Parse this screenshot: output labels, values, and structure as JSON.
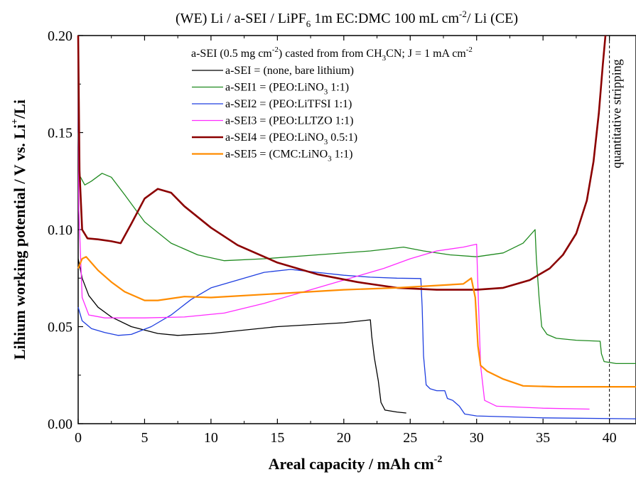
{
  "chart_data": {
    "type": "line",
    "title": {
      "main": "(WE) Li / a-SEI / LiPF",
      "sub1": "6",
      "rest": " 1m EC:DMC 100 mL cm",
      "sup1": "-2",
      "end": "/ Li (CE)"
    },
    "xlabel": {
      "main": "Areal capacity / mAh cm",
      "sup": "-2"
    },
    "ylabel": {
      "pre": "Lihium working potential / V vs. Li",
      "sup": "+",
      "post": "/Li"
    },
    "xlim": [
      0,
      42
    ],
    "ylim": [
      0,
      0.2
    ],
    "x_ticks": [
      0,
      5,
      10,
      15,
      20,
      25,
      30,
      35,
      40
    ],
    "x_tick_labels": [
      "0",
      "5",
      "10",
      "15",
      "20",
      "25",
      "30",
      "35",
      "40"
    ],
    "y_ticks": [
      0.0,
      0.05,
      0.1,
      0.15,
      0.2
    ],
    "y_tick_labels": [
      "0.00",
      "0.05",
      "0.10",
      "0.15",
      "0.20"
    ],
    "legend_position": "top-right",
    "legend_header": {
      "p1": "a-SEI (0.5 mg cm",
      "s1": "-2",
      "p2": ") casted from from CH",
      "s2": "3",
      "p3": "CN; J = 1 mA cm",
      "s3": "-2"
    },
    "annotation": {
      "text": "quantitative stripping",
      "x": 40
    },
    "series": [
      {
        "name": "a-SEI = (none, bare lithium)",
        "label": {
          "pre": "a-SEI = (none, bare lithium)",
          "sub": "",
          "post": ""
        },
        "color": "#000000",
        "width": 1.3,
        "points": [
          [
            0,
            0.085
          ],
          [
            0.3,
            0.075
          ],
          [
            0.8,
            0.066
          ],
          [
            1.5,
            0.06
          ],
          [
            2.5,
            0.055
          ],
          [
            4,
            0.05
          ],
          [
            6,
            0.0465
          ],
          [
            7.5,
            0.0455
          ],
          [
            10,
            0.0465
          ],
          [
            15,
            0.05
          ],
          [
            20,
            0.052
          ],
          [
            22,
            0.0535
          ],
          [
            22.1,
            0.045
          ],
          [
            22.3,
            0.034
          ],
          [
            22.6,
            0.022
          ],
          [
            22.8,
            0.011
          ],
          [
            23.1,
            0.007
          ],
          [
            24,
            0.006
          ],
          [
            24.7,
            0.0055
          ]
        ]
      },
      {
        "name": "a-SEI1 = (PEO:LiNO3 1:1)",
        "label": {
          "pre": "a-SEI1 = (PEO:LiNO",
          "sub": "3",
          "post": " 1:1)"
        },
        "color": "#1f8a1f",
        "width": 1.3,
        "points": [
          [
            0,
            0.15
          ],
          [
            0.1,
            0.128
          ],
          [
            0.5,
            0.123
          ],
          [
            1,
            0.125
          ],
          [
            1.8,
            0.129
          ],
          [
            2.5,
            0.127
          ],
          [
            3.5,
            0.118
          ],
          [
            5,
            0.104
          ],
          [
            7,
            0.093
          ],
          [
            9,
            0.087
          ],
          [
            11,
            0.084
          ],
          [
            14,
            0.085
          ],
          [
            18,
            0.087
          ],
          [
            22,
            0.089
          ],
          [
            24.5,
            0.091
          ],
          [
            26,
            0.089
          ],
          [
            28,
            0.087
          ],
          [
            30,
            0.086
          ],
          [
            32,
            0.088
          ],
          [
            33.5,
            0.093
          ],
          [
            34.4,
            0.1
          ],
          [
            34.5,
            0.085
          ],
          [
            34.7,
            0.065
          ],
          [
            34.9,
            0.05
          ],
          [
            35.3,
            0.046
          ],
          [
            36,
            0.044
          ],
          [
            37.5,
            0.043
          ],
          [
            39.3,
            0.0425
          ],
          [
            39.4,
            0.036
          ],
          [
            39.6,
            0.032
          ],
          [
            40.5,
            0.031
          ],
          [
            42,
            0.031
          ]
        ]
      },
      {
        "name": "a-SEI2 = (PEO:LiTFSI 1:1)",
        "label": {
          "pre": "a-SEI2 = (PEO:LiTFSI 1:1)",
          "sub": "",
          "post": ""
        },
        "color": "#1f3fe0",
        "width": 1.3,
        "points": [
          [
            0,
            0.06
          ],
          [
            0.3,
            0.053
          ],
          [
            1,
            0.049
          ],
          [
            2,
            0.047
          ],
          [
            3,
            0.0455
          ],
          [
            4,
            0.046
          ],
          [
            5.5,
            0.05
          ],
          [
            7,
            0.056
          ],
          [
            8.5,
            0.064
          ],
          [
            10,
            0.07
          ],
          [
            12,
            0.074
          ],
          [
            14,
            0.078
          ],
          [
            16,
            0.0795
          ],
          [
            18,
            0.078
          ],
          [
            20,
            0.0765
          ],
          [
            22,
            0.0755
          ],
          [
            24,
            0.075
          ],
          [
            25.8,
            0.0748
          ],
          [
            25.9,
            0.06
          ],
          [
            26,
            0.035
          ],
          [
            26.2,
            0.02
          ],
          [
            26.5,
            0.018
          ],
          [
            27,
            0.017
          ],
          [
            27.6,
            0.017
          ],
          [
            27.8,
            0.013
          ],
          [
            28.2,
            0.012
          ],
          [
            28.7,
            0.009
          ],
          [
            29.1,
            0.005
          ],
          [
            30,
            0.004
          ],
          [
            35,
            0.003
          ],
          [
            42,
            0.0025
          ]
        ]
      },
      {
        "name": "a-SEI3 = (PEO:LLTZO 1:1)",
        "label": {
          "pre": "a-SEI3 = (PEO:LLTZO 1:1)",
          "sub": "",
          "post": ""
        },
        "color": "#ff2bff",
        "width": 1.3,
        "points": [
          [
            0,
            0.19
          ],
          [
            0.05,
            0.11
          ],
          [
            0.3,
            0.065
          ],
          [
            0.8,
            0.056
          ],
          [
            2,
            0.0545
          ],
          [
            5,
            0.0545
          ],
          [
            8,
            0.055
          ],
          [
            11,
            0.057
          ],
          [
            14,
            0.062
          ],
          [
            17,
            0.068
          ],
          [
            20,
            0.074
          ],
          [
            23,
            0.08
          ],
          [
            25,
            0.085
          ],
          [
            27,
            0.089
          ],
          [
            29,
            0.091
          ],
          [
            30,
            0.0925
          ],
          [
            30.1,
            0.07
          ],
          [
            30.3,
            0.03
          ],
          [
            30.6,
            0.012
          ],
          [
            31.5,
            0.009
          ],
          [
            35,
            0.008
          ],
          [
            38.5,
            0.0075
          ]
        ]
      },
      {
        "name": "a-SEI4 = (PEO:LiNO3 0.5:1)",
        "label": {
          "pre": "a-SEI4 = (PEO:LiNO",
          "sub": "3",
          "post": " 0.5:1)"
        },
        "color": "#8b0000",
        "width": 2.6,
        "points": [
          [
            0,
            0.2
          ],
          [
            0.1,
            0.13
          ],
          [
            0.3,
            0.1
          ],
          [
            0.7,
            0.0955
          ],
          [
            1.5,
            0.095
          ],
          [
            2.5,
            0.094
          ],
          [
            3.2,
            0.093
          ],
          [
            4,
            0.103
          ],
          [
            5,
            0.116
          ],
          [
            6,
            0.121
          ],
          [
            7,
            0.119
          ],
          [
            8,
            0.112
          ],
          [
            10,
            0.101
          ],
          [
            12,
            0.092
          ],
          [
            15,
            0.083
          ],
          [
            18,
            0.077
          ],
          [
            21,
            0.073
          ],
          [
            24,
            0.07
          ],
          [
            27,
            0.069
          ],
          [
            30,
            0.069
          ],
          [
            32,
            0.07
          ],
          [
            34,
            0.074
          ],
          [
            35.5,
            0.08
          ],
          [
            36.5,
            0.087
          ],
          [
            37.5,
            0.098
          ],
          [
            38.3,
            0.115
          ],
          [
            38.8,
            0.135
          ],
          [
            39.2,
            0.16
          ],
          [
            39.5,
            0.185
          ],
          [
            39.7,
            0.2
          ]
        ]
      },
      {
        "name": "a-SEI5 = (CMC:LiNO3 1:1)",
        "label": {
          "pre": "a-SEI5 = (CMC:LiNO",
          "sub": "3",
          "post": " 1:1)"
        },
        "color": "#ff8c00",
        "width": 2.2,
        "points": [
          [
            0,
            0.08
          ],
          [
            0.3,
            0.085
          ],
          [
            0.6,
            0.086
          ],
          [
            1.5,
            0.079
          ],
          [
            2.5,
            0.073
          ],
          [
            3.5,
            0.068
          ],
          [
            5,
            0.0635
          ],
          [
            6,
            0.0635
          ],
          [
            8,
            0.0655
          ],
          [
            10,
            0.065
          ],
          [
            15,
            0.067
          ],
          [
            20,
            0.069
          ],
          [
            24,
            0.07
          ],
          [
            29,
            0.072
          ],
          [
            29.6,
            0.075
          ],
          [
            29.9,
            0.065
          ],
          [
            30.1,
            0.04
          ],
          [
            30.3,
            0.03
          ],
          [
            30.8,
            0.027
          ],
          [
            32,
            0.023
          ],
          [
            33.5,
            0.0195
          ],
          [
            36,
            0.019
          ],
          [
            42,
            0.019
          ]
        ]
      }
    ]
  }
}
